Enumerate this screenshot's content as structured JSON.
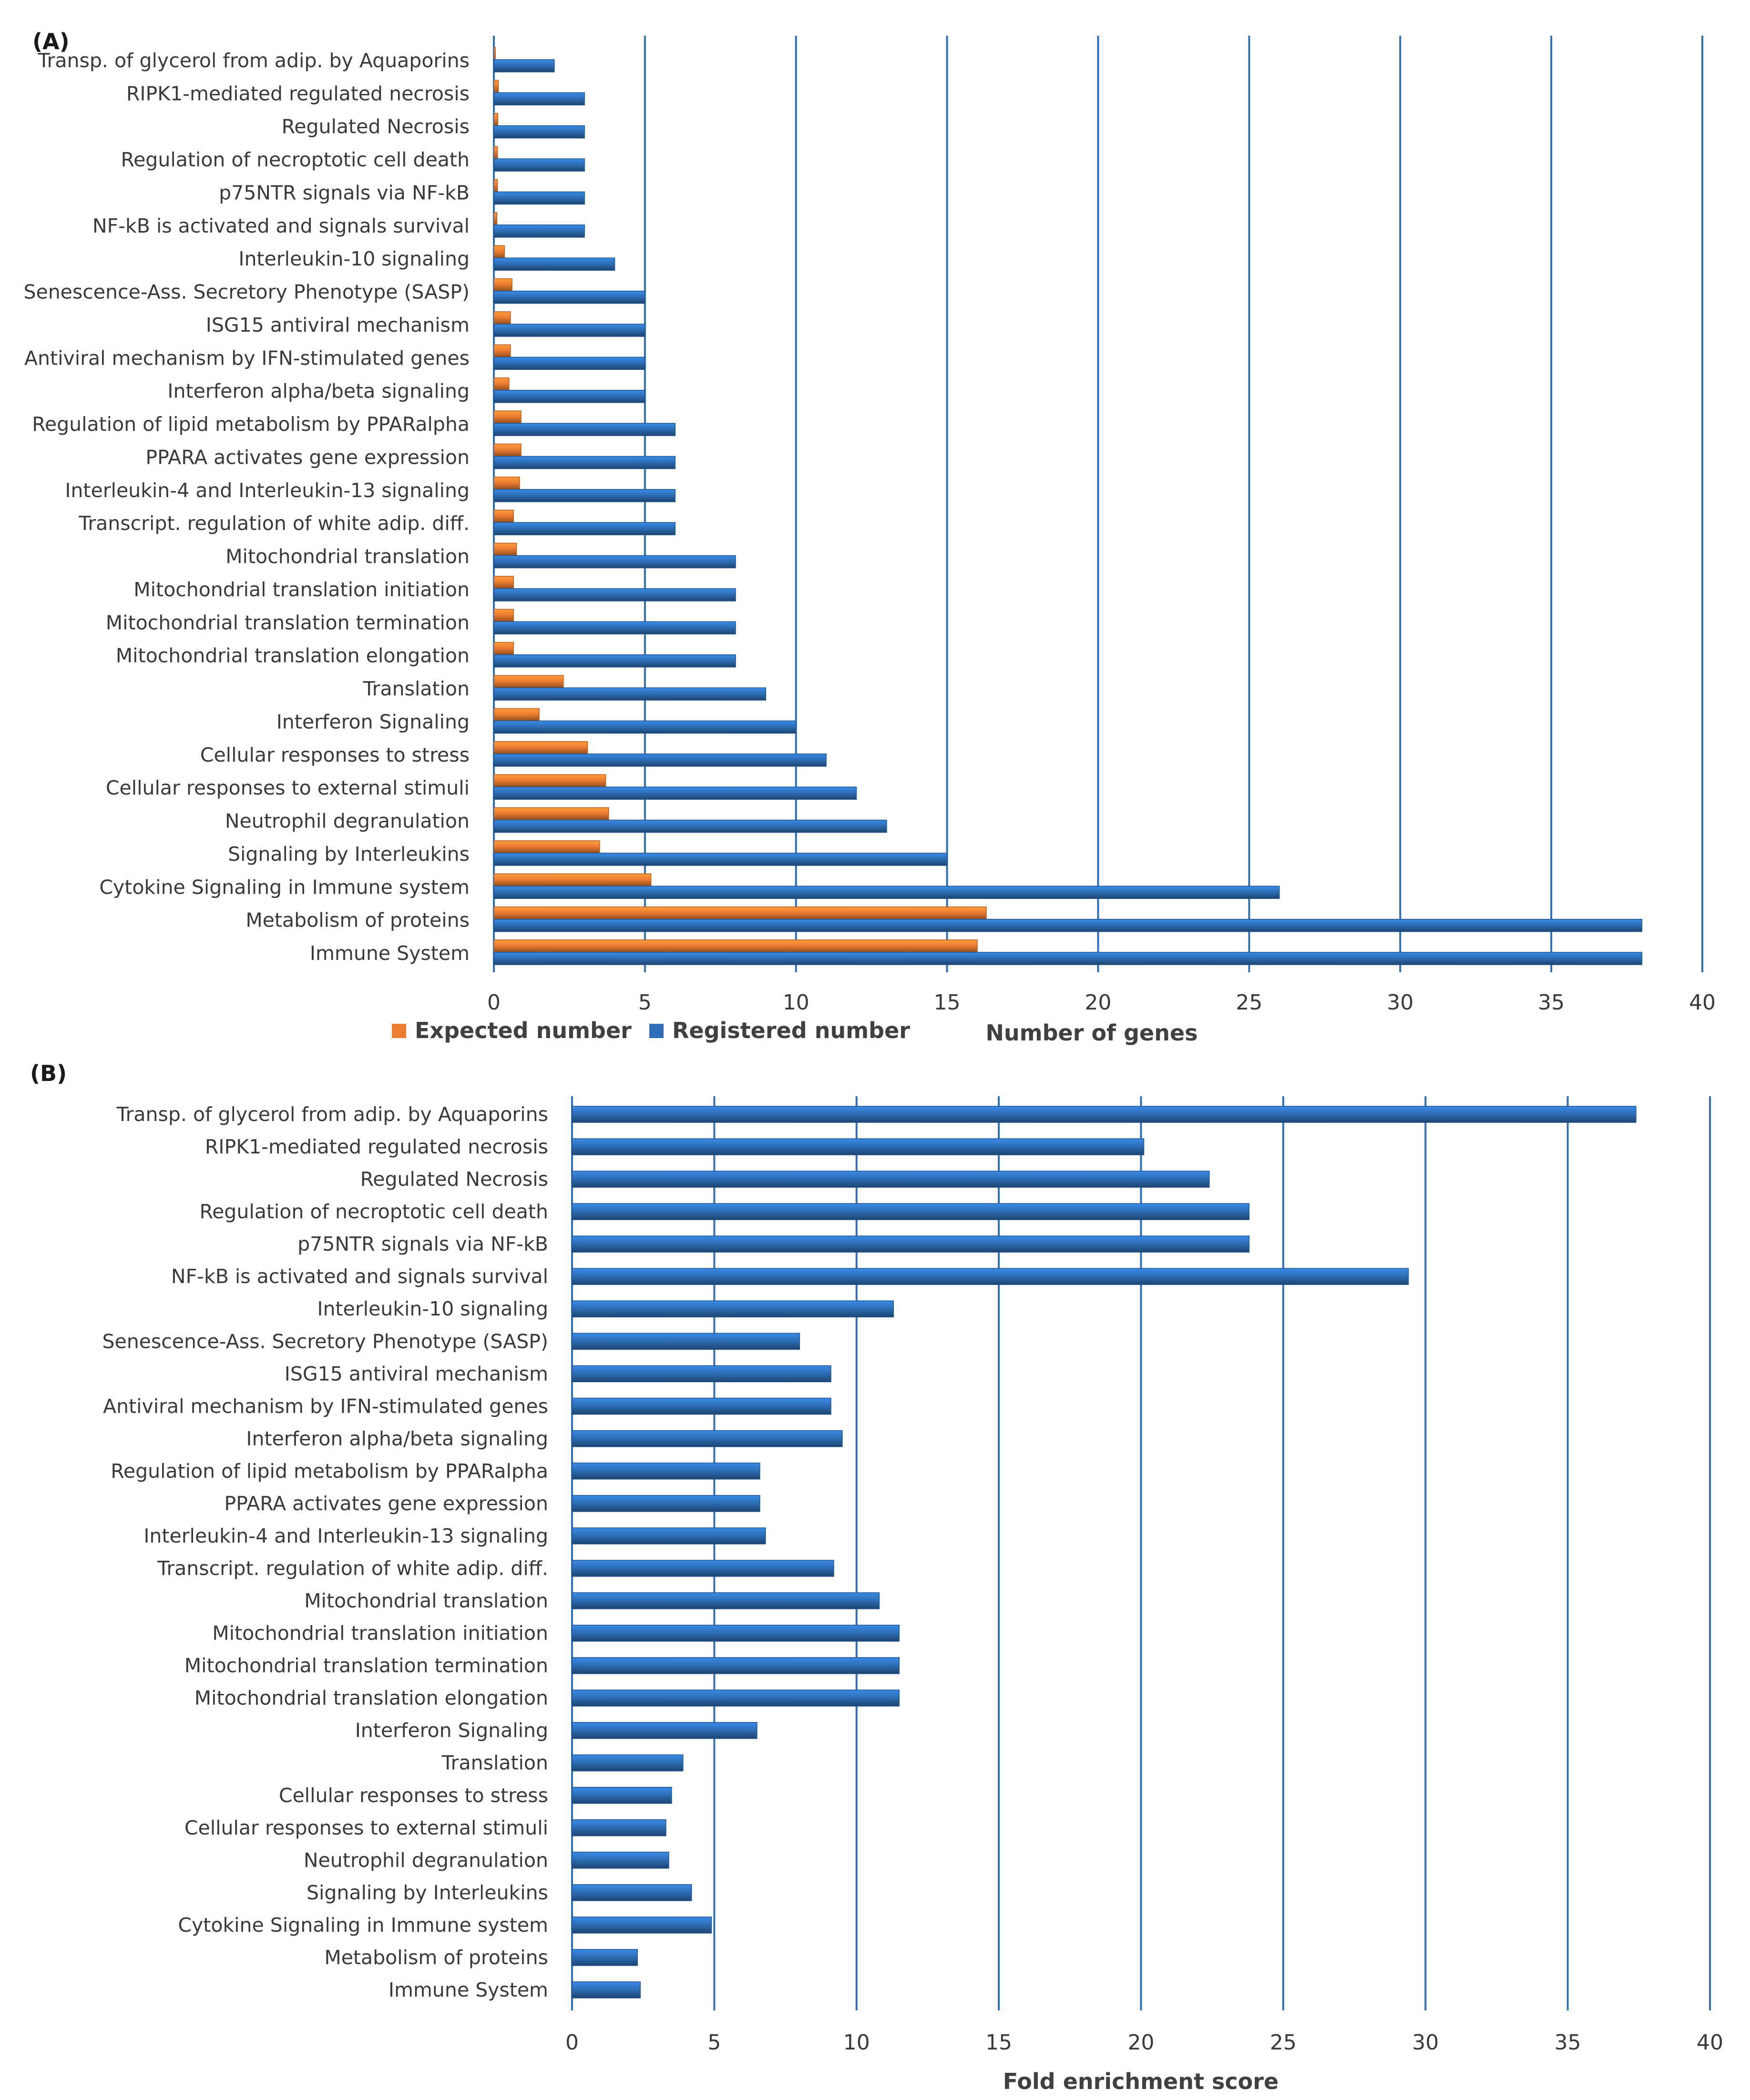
{
  "chart_data": [
    {
      "panel": "(A)",
      "type": "bar",
      "orientation": "horizontal",
      "categories": [
        "Transp. of glycerol from adip. by Aquaporins",
        "RIPK1-mediated regulated necrosis",
        "Regulated Necrosis",
        "Regulation of necroptotic cell death",
        "p75NTR signals via NF-kB",
        "NF-kB is activated and signals survival",
        "Interleukin-10 signaling",
        "Senescence-Ass. Secretory Phenotype (SASP)",
        "ISG15 antiviral mechanism",
        "Antiviral mechanism by IFN-stimulated genes",
        "Interferon alpha/beta signaling",
        "Regulation of lipid metabolism by PPARalpha",
        "PPARA activates gene expression",
        "Interleukin-4 and Interleukin-13 signaling",
        "Transcript. regulation of white adip. diff.",
        "Mitochondrial translation",
        "Mitochondrial translation initiation",
        "Mitochondrial translation termination",
        "Mitochondrial translation elongation",
        "Translation",
        "Interferon Signaling",
        "Cellular responses to stress",
        "Cellular responses to external stimuli",
        "Neutrophil degranulation",
        "Signaling by Interleukins",
        "Cytokine Signaling in Immune system",
        "Metabolism of proteins",
        "Immune System"
      ],
      "series": [
        {
          "name": "Expected number",
          "color": "#ed7d31",
          "values": [
            0.05,
            0.15,
            0.13,
            0.12,
            0.12,
            0.1,
            0.35,
            0.6,
            0.55,
            0.55,
            0.5,
            0.9,
            0.9,
            0.85,
            0.65,
            0.75,
            0.65,
            0.65,
            0.65,
            2.3,
            1.5,
            3.1,
            3.7,
            3.8,
            3.5,
            5.2,
            16.3,
            16.0
          ]
        },
        {
          "name": "Registered number",
          "color": "#2e6fb8",
          "values": [
            2,
            3,
            3,
            3,
            3,
            3,
            4,
            5,
            5,
            5,
            5,
            6,
            6,
            6,
            6,
            8,
            8,
            8,
            8,
            9,
            10,
            11,
            12,
            13,
            15,
            26,
            38,
            38
          ]
        }
      ],
      "xlabel": "Number of genes",
      "ylabel": "",
      "xlim": [
        0,
        40
      ],
      "xticks": [
        0,
        5,
        10,
        15,
        20,
        25,
        30,
        35,
        40
      ],
      "legend": "bottom-left",
      "grid": true
    },
    {
      "panel": "(B)",
      "type": "bar",
      "orientation": "horizontal",
      "categories": [
        "Transp. of glycerol from adip. by Aquaporins",
        "RIPK1-mediated regulated necrosis",
        "Regulated Necrosis",
        "Regulation of necroptotic cell death",
        "p75NTR signals via NF-kB",
        "NF-kB is activated and signals survival",
        "Interleukin-10 signaling",
        "Senescence-Ass. Secretory Phenotype (SASP)",
        "ISG15 antiviral mechanism",
        "Antiviral mechanism by IFN-stimulated genes",
        "Interferon alpha/beta signaling",
        "Regulation of lipid metabolism by PPARalpha",
        "PPARA activates gene expression",
        "Interleukin-4 and Interleukin-13 signaling",
        "Transcript. regulation of white adip. diff.",
        "Mitochondrial translation",
        "Mitochondrial translation initiation",
        "Mitochondrial translation termination",
        "Mitochondrial translation elongation",
        "Interferon Signaling",
        "Translation",
        "Cellular responses to stress",
        "Cellular responses to external stimuli",
        "Neutrophil degranulation",
        "Signaling by Interleukins",
        "Cytokine Signaling in Immune system",
        "Metabolism of proteins",
        "Immune System"
      ],
      "series": [
        {
          "name": "Fold enrichment score",
          "color": "#2e6fb8",
          "values": [
            37.4,
            20.1,
            22.4,
            23.8,
            23.8,
            29.4,
            11.3,
            8.0,
            9.1,
            9.1,
            9.5,
            6.6,
            6.6,
            6.8,
            9.2,
            10.8,
            11.5,
            11.5,
            11.5,
            6.5,
            3.9,
            3.5,
            3.3,
            3.4,
            4.2,
            4.9,
            2.3,
            2.4
          ]
        }
      ],
      "xlabel": "Fold enrichment score",
      "ylabel": "",
      "xlim": [
        0,
        40
      ],
      "xticks": [
        0,
        5,
        10,
        15,
        20,
        25,
        30,
        35,
        40
      ],
      "grid": true
    }
  ]
}
